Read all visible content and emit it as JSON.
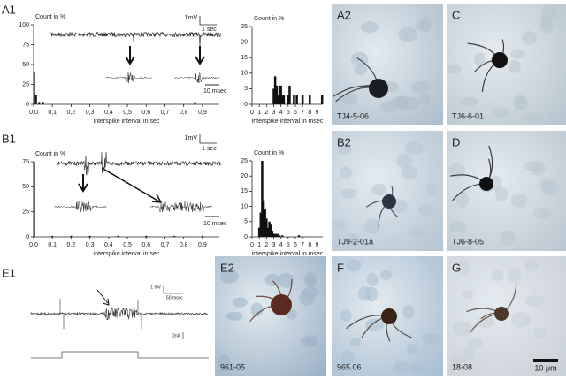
{
  "chart_data": [
    {
      "type": "bar",
      "y_label": "Count in %",
      "x_label": "interspike interval in sec",
      "x": [
        0.003,
        0.013,
        0.03,
        0.05,
        0.86
      ],
      "values": [
        40,
        12,
        3,
        3,
        3
      ],
      "color": "#111",
      "xlim": [
        0,
        0.99
      ],
      "ylim": [
        0,
        100
      ],
      "xticks": [
        {
          "value": 0,
          "label": "0,0"
        },
        {
          "value": 0.1,
          "label": "0,1"
        },
        {
          "value": 0.2,
          "label": "0,2"
        },
        {
          "value": 0.3,
          "label": "0,3"
        },
        {
          "value": 0.4,
          "label": "0,4"
        },
        {
          "value": 0.5,
          "label": "0,5"
        },
        {
          "value": 0.6,
          "label": "0,6"
        },
        {
          "value": 0.7,
          "label": "0,7"
        },
        {
          "value": 0.8,
          "label": "0,8"
        },
        {
          "value": 0.9,
          "label": "0,9"
        }
      ],
      "yticks": [
        0,
        25,
        50,
        75,
        100
      ]
    },
    {
      "type": "bar",
      "y_label": "Count in %",
      "x_label": "interspike interval in msec",
      "x": [
        3.0,
        3.2,
        3.4,
        3.6,
        3.8,
        4.0,
        4.2,
        4.4,
        5.0,
        5.2,
        5.8,
        6.2,
        7.0,
        8.0,
        9.7
      ],
      "values": [
        5,
        9,
        6,
        3,
        6,
        6,
        3,
        3,
        3,
        6,
        3,
        3,
        3,
        3,
        3
      ],
      "color": "#111",
      "xlim": [
        0,
        9.8
      ],
      "ylim": [
        0,
        25
      ],
      "xticks": [
        0,
        1,
        2,
        3,
        4,
        5,
        6,
        7,
        8,
        9
      ],
      "yticks": [
        0,
        5,
        10,
        15,
        20,
        25
      ]
    },
    {
      "type": "bar",
      "y_label": "Count in %",
      "x_label": "interspike interval in sec",
      "x": [
        0.003,
        0.1,
        0.2,
        0.3,
        0.45,
        0.6,
        0.75,
        0.9
      ],
      "values": [
        75,
        1,
        1,
        1,
        1,
        1,
        1,
        1
      ],
      "color": "#111",
      "xlim": [
        0,
        0.99
      ],
      "ylim": [
        0,
        75
      ],
      "xticks": [
        {
          "value": 0,
          "label": "0,0"
        },
        {
          "value": 0.1,
          "label": "0,1"
        },
        {
          "value": 0.2,
          "label": "0,2"
        },
        {
          "value": 0.3,
          "label": "0,3"
        },
        {
          "value": 0.4,
          "label": "0,4"
        },
        {
          "value": 0.5,
          "label": "0,5"
        },
        {
          "value": 0.6,
          "label": "0,6"
        },
        {
          "value": 0.7,
          "label": "0,7"
        },
        {
          "value": 0.8,
          "label": "0,8"
        },
        {
          "value": 0.9,
          "label": "0,9"
        }
      ],
      "yticks": [
        0,
        25,
        50,
        75
      ]
    },
    {
      "type": "bar",
      "y_label": "Count in %",
      "x_label": "interspike interval in msec",
      "x": [
        1.0,
        1.2,
        1.4,
        1.6,
        1.8,
        2.0,
        2.2,
        2.4,
        2.6,
        2.8,
        3.0,
        3.2,
        3.5,
        3.8,
        4.2,
        6.5
      ],
      "values": [
        3,
        8,
        25,
        12,
        9,
        6,
        3,
        5,
        4,
        2,
        1,
        1,
        1,
        0.5,
        0.5,
        0.5
      ],
      "color": "#111",
      "xlim": [
        0,
        9.8
      ],
      "ylim": [
        0,
        25
      ],
      "xticks": [
        0,
        1,
        2,
        3,
        4,
        5,
        6,
        7,
        8,
        9
      ],
      "yticks": [
        0,
        5,
        10,
        15,
        20,
        25
      ]
    }
  ],
  "panels": {
    "a1": "A1",
    "b1": "B1",
    "e1": "E1",
    "a2": "A2",
    "c": "C",
    "b2": "B2",
    "d": "D",
    "e2": "E2",
    "f": "F",
    "g": "G"
  },
  "captions": {
    "a2": "TJ4-5-06",
    "c": "TJ6-6-01",
    "b2": "TJ9-2-01a",
    "d": "TJ6-8-05",
    "e2": "961-05",
    "f": "965.06",
    "g": "18-08",
    "scale": "10 μm"
  },
  "scale_bars": {
    "a1": [
      "1mV",
      "1 sec",
      "10 msec"
    ],
    "b1": [
      "1mV",
      "1 sec",
      "10 msec"
    ],
    "e1": [
      "1 mV",
      "50 msec",
      "2nA"
    ]
  }
}
